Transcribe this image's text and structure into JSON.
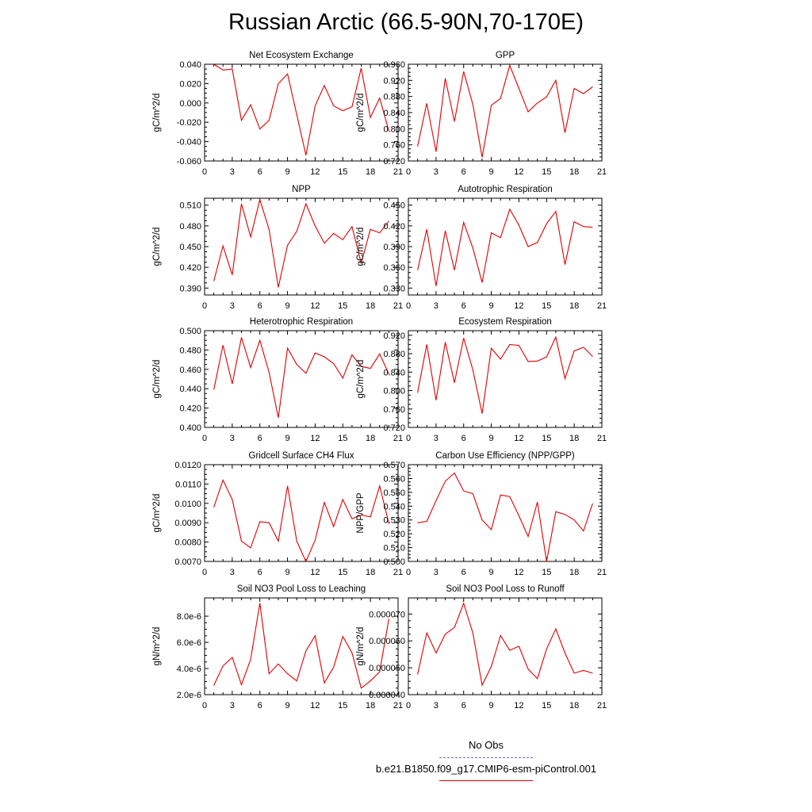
{
  "page": {
    "title": "Russian Arctic (66.5-90N,70-170E)"
  },
  "legend": {
    "items": [
      {
        "label": "No Obs",
        "color": "#6a6ad6",
        "style": "dashed"
      },
      {
        "label": "b.e21.B1850.f09_g17.CMIP6-esm-piControl.001",
        "color": "#e00000",
        "style": "solid"
      }
    ]
  },
  "chart_data": [
    {
      "type": "line",
      "title": "Net Ecosystem Exchange",
      "ylabel": "gC/m^2/d",
      "xlim": [
        0,
        21
      ],
      "xticks": [
        "0",
        "3",
        "6",
        "9",
        "12",
        "15",
        "18",
        "21"
      ],
      "ylim": [
        -0.06,
        0.04
      ],
      "yticks": [
        "-0.060",
        "-0.040",
        "-0.020",
        "0.000",
        "0.020",
        "0.040"
      ],
      "x": [
        1,
        2,
        3,
        4,
        5,
        6,
        7,
        8,
        9,
        10,
        11,
        12,
        13,
        14,
        15,
        16,
        17,
        18,
        19,
        20
      ],
      "series": [
        {
          "color": "#e00000",
          "values": [
            0.04,
            0.034,
            0.035,
            -0.018,
            -0.002,
            -0.027,
            -0.018,
            0.02,
            0.03,
            -0.012,
            -0.054,
            -0.003,
            0.018,
            -0.003,
            -0.008,
            -0.004,
            0.036,
            -0.015,
            0.005,
            -0.029
          ]
        }
      ]
    },
    {
      "type": "line",
      "title": "GPP",
      "ylabel": "gC/m^2/d",
      "xlim": [
        0,
        21
      ],
      "xticks": [
        "0",
        "3",
        "6",
        "9",
        "12",
        "15",
        "18",
        "21"
      ],
      "ylim": [
        0.72,
        0.96
      ],
      "yticks": [
        "0.720",
        "0.760",
        "0.800",
        "0.840",
        "0.880",
        "0.920",
        "0.960"
      ],
      "x": [
        1,
        2,
        3,
        4,
        5,
        6,
        7,
        8,
        9,
        10,
        11,
        12,
        13,
        14,
        15,
        16,
        17,
        18,
        19,
        20
      ],
      "series": [
        {
          "color": "#e00000",
          "values": [
            0.756,
            0.863,
            0.743,
            0.925,
            0.818,
            0.942,
            0.86,
            0.729,
            0.858,
            0.875,
            0.957,
            0.9,
            0.842,
            0.864,
            0.879,
            0.92,
            0.79,
            0.9,
            0.887,
            0.904
          ]
        }
      ]
    },
    {
      "type": "line",
      "title": "NPP",
      "ylabel": "gC/m^2/d",
      "xlim": [
        0,
        21
      ],
      "xticks": [
        "0",
        "3",
        "6",
        "9",
        "12",
        "15",
        "18",
        "21"
      ],
      "ylim": [
        0.38,
        0.52
      ],
      "yticks": [
        "0.390",
        "0.420",
        "0.450",
        "0.480",
        "0.510"
      ],
      "x": [
        1,
        2,
        3,
        4,
        5,
        6,
        7,
        8,
        9,
        10,
        11,
        12,
        13,
        14,
        15,
        16,
        17,
        18,
        19,
        20
      ],
      "series": [
        {
          "color": "#e00000",
          "values": [
            0.4,
            0.451,
            0.409,
            0.512,
            0.464,
            0.518,
            0.475,
            0.391,
            0.452,
            0.472,
            0.512,
            0.48,
            0.455,
            0.469,
            0.46,
            0.479,
            0.426,
            0.475,
            0.47,
            0.487
          ]
        }
      ]
    },
    {
      "type": "line",
      "title": "Autotrophic Respiration",
      "ylabel": "gC/m^2/d",
      "xlim": [
        0,
        21
      ],
      "xticks": [
        "0",
        "3",
        "6",
        "9",
        "12",
        "15",
        "18",
        "21"
      ],
      "ylim": [
        0.32,
        0.46
      ],
      "yticks": [
        "0.330",
        "0.360",
        "0.390",
        "0.420",
        "0.450"
      ],
      "x": [
        1,
        2,
        3,
        4,
        5,
        6,
        7,
        8,
        9,
        10,
        11,
        12,
        13,
        14,
        15,
        16,
        17,
        18,
        19,
        20
      ],
      "series": [
        {
          "color": "#e00000",
          "values": [
            0.356,
            0.415,
            0.333,
            0.413,
            0.356,
            0.425,
            0.388,
            0.338,
            0.41,
            0.403,
            0.444,
            0.421,
            0.39,
            0.396,
            0.423,
            0.441,
            0.364,
            0.426,
            0.419,
            0.418
          ]
        }
      ]
    },
    {
      "type": "line",
      "title": "Heterotrophic Respiration",
      "ylabel": "gC/m^2/d",
      "xlim": [
        0,
        21
      ],
      "xticks": [
        "0",
        "3",
        "6",
        "9",
        "12",
        "15",
        "18",
        "21"
      ],
      "ylim": [
        0.4,
        0.5
      ],
      "yticks": [
        "0.400",
        "0.420",
        "0.440",
        "0.460",
        "0.480",
        "0.500"
      ],
      "x": [
        1,
        2,
        3,
        4,
        5,
        6,
        7,
        8,
        9,
        10,
        11,
        12,
        13,
        14,
        15,
        16,
        17,
        18,
        19,
        20
      ],
      "series": [
        {
          "color": "#e00000",
          "values": [
            0.439,
            0.485,
            0.445,
            0.493,
            0.462,
            0.49,
            0.457,
            0.41,
            0.482,
            0.465,
            0.456,
            0.477,
            0.473,
            0.466,
            0.451,
            0.475,
            0.463,
            0.461,
            0.476,
            0.455
          ]
        }
      ]
    },
    {
      "type": "line",
      "title": "Ecosystem Respiration",
      "ylabel": "gC/m^2/d",
      "xlim": [
        0,
        21
      ],
      "xticks": [
        "0",
        "3",
        "6",
        "9",
        "12",
        "15",
        "18",
        "21"
      ],
      "ylim": [
        0.72,
        0.93
      ],
      "yticks": [
        "0.720",
        "0.760",
        "0.800",
        "0.840",
        "0.880",
        "0.920"
      ],
      "x": [
        1,
        2,
        3,
        4,
        5,
        6,
        7,
        8,
        9,
        10,
        11,
        12,
        13,
        14,
        15,
        16,
        17,
        18,
        19,
        20
      ],
      "series": [
        {
          "color": "#e00000",
          "values": [
            0.795,
            0.9,
            0.779,
            0.905,
            0.817,
            0.914,
            0.845,
            0.75,
            0.892,
            0.868,
            0.9,
            0.898,
            0.863,
            0.864,
            0.873,
            0.916,
            0.826,
            0.886,
            0.894,
            0.874
          ]
        }
      ]
    },
    {
      "type": "line",
      "title": "Gridcell Surface CH4 Flux",
      "ylabel": "gC/m^2/d",
      "xlim": [
        0,
        21
      ],
      "xticks": [
        "0",
        "3",
        "6",
        "9",
        "12",
        "15",
        "18",
        "21"
      ],
      "ylim": [
        0.007,
        0.012
      ],
      "yticks": [
        "0.0070",
        "0.0080",
        "0.0090",
        "0.0100",
        "0.0110",
        "0.0120"
      ],
      "x": [
        1,
        2,
        3,
        4,
        5,
        6,
        7,
        8,
        9,
        10,
        11,
        12,
        13,
        14,
        15,
        16,
        17,
        18,
        19,
        20
      ],
      "series": [
        {
          "color": "#e00000",
          "values": [
            0.0098,
            0.0112,
            0.0102,
            0.00805,
            0.0077,
            0.00905,
            0.009,
            0.00805,
            0.0109,
            0.00805,
            0.007,
            0.0081,
            0.01005,
            0.0088,
            0.0102,
            0.0092,
            0.0094,
            0.0093,
            0.0109,
            0.00895
          ]
        }
      ]
    },
    {
      "type": "line",
      "title": "Carbon Use Efficiency (NPP/GPP)",
      "ylabel": "NPP/GPP",
      "xlim": [
        0,
        21
      ],
      "xticks": [
        "0",
        "3",
        "6",
        "9",
        "12",
        "15",
        "18",
        "21"
      ],
      "ylim": [
        0.5,
        0.57
      ],
      "yticks": [
        "0.500",
        "0.510",
        "0.520",
        "0.530",
        "0.540",
        "0.550",
        "0.560",
        "0.570"
      ],
      "x": [
        1,
        2,
        3,
        4,
        5,
        6,
        7,
        8,
        9,
        10,
        11,
        12,
        13,
        14,
        15,
        16,
        17,
        18,
        19,
        20
      ],
      "series": [
        {
          "color": "#e00000",
          "values": [
            0.528,
            0.529,
            0.544,
            0.558,
            0.564,
            0.551,
            0.549,
            0.53,
            0.523,
            0.548,
            0.547,
            0.533,
            0.518,
            0.543,
            0.5,
            0.536,
            0.534,
            0.53,
            0.522,
            0.542
          ]
        }
      ]
    },
    {
      "type": "line",
      "title": "Soil NO3 Pool Loss to Leaching",
      "ylabel": "gN/m^2/d",
      "xlim": [
        0,
        21
      ],
      "xticks": [
        "0",
        "3",
        "6",
        "9",
        "12",
        "15",
        "18",
        "21"
      ],
      "ylim": [
        2e-06,
        9.4e-06
      ],
      "yticks": [
        "2.0e-6",
        "4.0e-6",
        "6.0e-6",
        "8.0e-6"
      ],
      "ytick_values": [
        2e-06,
        4e-06,
        6e-06,
        8e-06
      ],
      "x": [
        1,
        2,
        3,
        4,
        5,
        6,
        7,
        8,
        9,
        10,
        11,
        12,
        13,
        14,
        15,
        16,
        17,
        18,
        19,
        20
      ],
      "series": [
        {
          "color": "#e00000",
          "values": [
            2.7e-06,
            4.2e-06,
            4.85e-06,
            2.75e-06,
            4.7e-06,
            9e-06,
            3.6e-06,
            4.35e-06,
            3.6e-06,
            3.05e-06,
            5.35e-06,
            6.5e-06,
            2.9e-06,
            4.1e-06,
            6.45e-06,
            5.2e-06,
            2.5e-06,
            3.05e-06,
            3.75e-06,
            7.8e-06
          ]
        }
      ]
    },
    {
      "type": "line",
      "title": "Soil NO3 Pool Loss to Runoff",
      "ylabel": "gN/m^2/d",
      "xlim": [
        0,
        21
      ],
      "xticks": [
        "0",
        "3",
        "6",
        "9",
        "12",
        "15",
        "18",
        "21"
      ],
      "ylim": [
        4e-05,
        7.6e-05
      ],
      "yticks": [
        "0.000040",
        "0.000050",
        "0.000060",
        "0.000070"
      ],
      "ytick_values": [
        4e-05,
        5e-05,
        6e-05,
        7e-05
      ],
      "x": [
        1,
        2,
        3,
        4,
        5,
        6,
        7,
        8,
        9,
        10,
        11,
        12,
        13,
        14,
        15,
        16,
        17,
        18,
        19,
        20
      ],
      "series": [
        {
          "color": "#e00000",
          "values": [
            4.75e-05,
            6.3e-05,
            5.55e-05,
            6.25e-05,
            6.5e-05,
            7.4e-05,
            6.3e-05,
            4.35e-05,
            5.05e-05,
            6.2e-05,
            5.65e-05,
            5.8e-05,
            4.95e-05,
            4.6e-05,
            5.7e-05,
            6.45e-05,
            5.55e-05,
            4.8e-05,
            4.9e-05,
            4.8e-05
          ]
        }
      ]
    }
  ]
}
